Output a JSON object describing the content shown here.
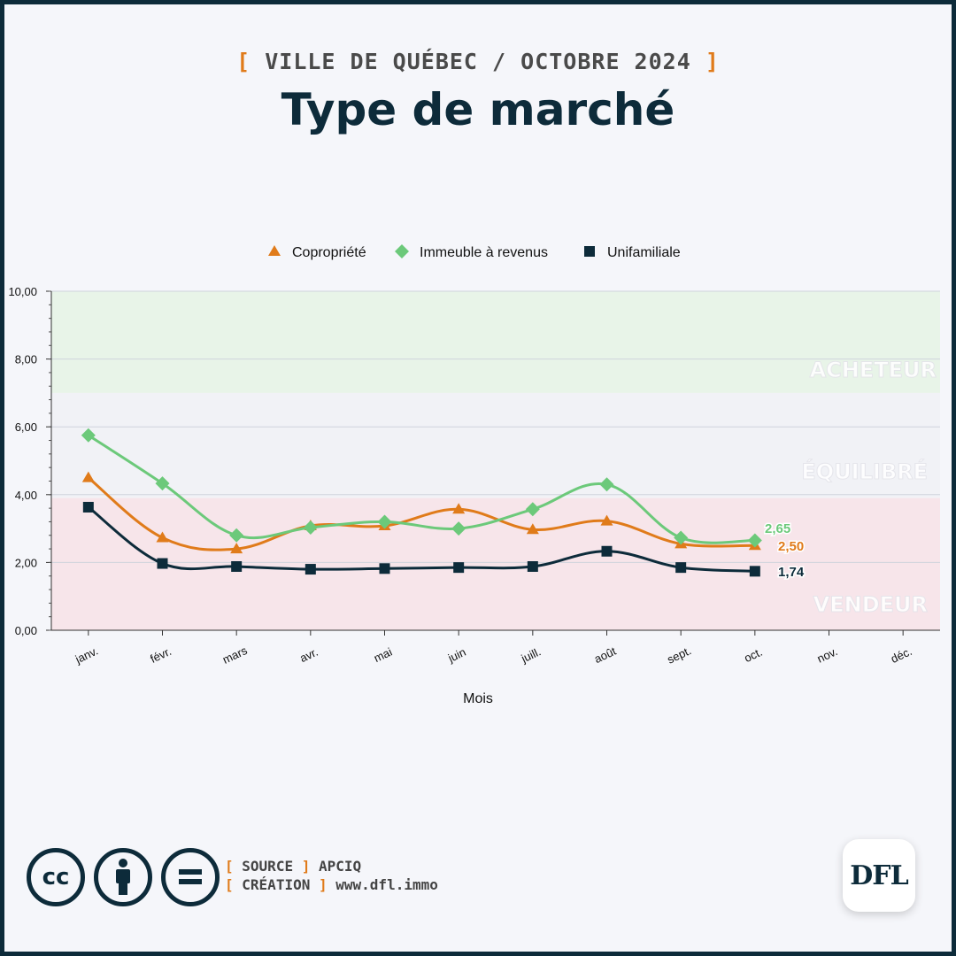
{
  "header": {
    "bracket_open": "[",
    "subtitle": "VILLE DE QUÉBEC / OCTOBRE 2024",
    "bracket_close": "]",
    "title": "Type de marché"
  },
  "chart_data": {
    "type": "line",
    "categories": [
      "janv.",
      "févr.",
      "mars",
      "avr.",
      "mai",
      "juin",
      "juill.",
      "août",
      "sept.",
      "oct.",
      "nov.",
      "déc."
    ],
    "xlabel": "Mois",
    "ylabel": "",
    "ylim": [
      0,
      10
    ],
    "yticks": [
      "0,00",
      "2,00",
      "4,00",
      "6,00",
      "8,00",
      "10,00"
    ],
    "grid": true,
    "legend_position": "top-center",
    "zones": [
      {
        "label": "ACHETEUR",
        "from": 7,
        "to": 10,
        "color": "#e8f4e8"
      },
      {
        "label": "ÉQUILIBRÉ",
        "from": 3.9,
        "to": 7,
        "color": "#f1f2f6"
      },
      {
        "label": "VENDEUR",
        "from": 0,
        "to": 3.9,
        "color": "#f7e5ea"
      }
    ],
    "series": [
      {
        "name": "Copropriété",
        "marker": "triangle",
        "color": "#e07b1a",
        "values": [
          4.5,
          2.73,
          2.4,
          3.08,
          3.08,
          3.57,
          2.97,
          3.22,
          2.55,
          2.5,
          null,
          null
        ],
        "end_label": "2,50"
      },
      {
        "name": "Immeuble à revenus",
        "marker": "diamond",
        "color": "#6cc97a",
        "values": [
          5.75,
          4.33,
          2.8,
          3.03,
          3.2,
          3.0,
          3.57,
          4.3,
          2.73,
          2.65,
          null,
          null
        ],
        "end_label": "2,65"
      },
      {
        "name": "Unifamiliale",
        "marker": "square",
        "color": "#0d2b3a",
        "values": [
          3.63,
          1.97,
          1.88,
          1.8,
          1.82,
          1.85,
          1.88,
          2.33,
          1.85,
          1.74,
          null,
          null
        ],
        "end_label": "1,74"
      }
    ]
  },
  "footer": {
    "cc_label": "cc",
    "source_open": "[",
    "source_key": "SOURCE",
    "source_close": "]",
    "source_value": "APCIQ",
    "creation_open": "[",
    "creation_key": "CRÉATION",
    "creation_close": "]",
    "creation_value": "www.dfl.immo",
    "logo_text": "DFL"
  }
}
